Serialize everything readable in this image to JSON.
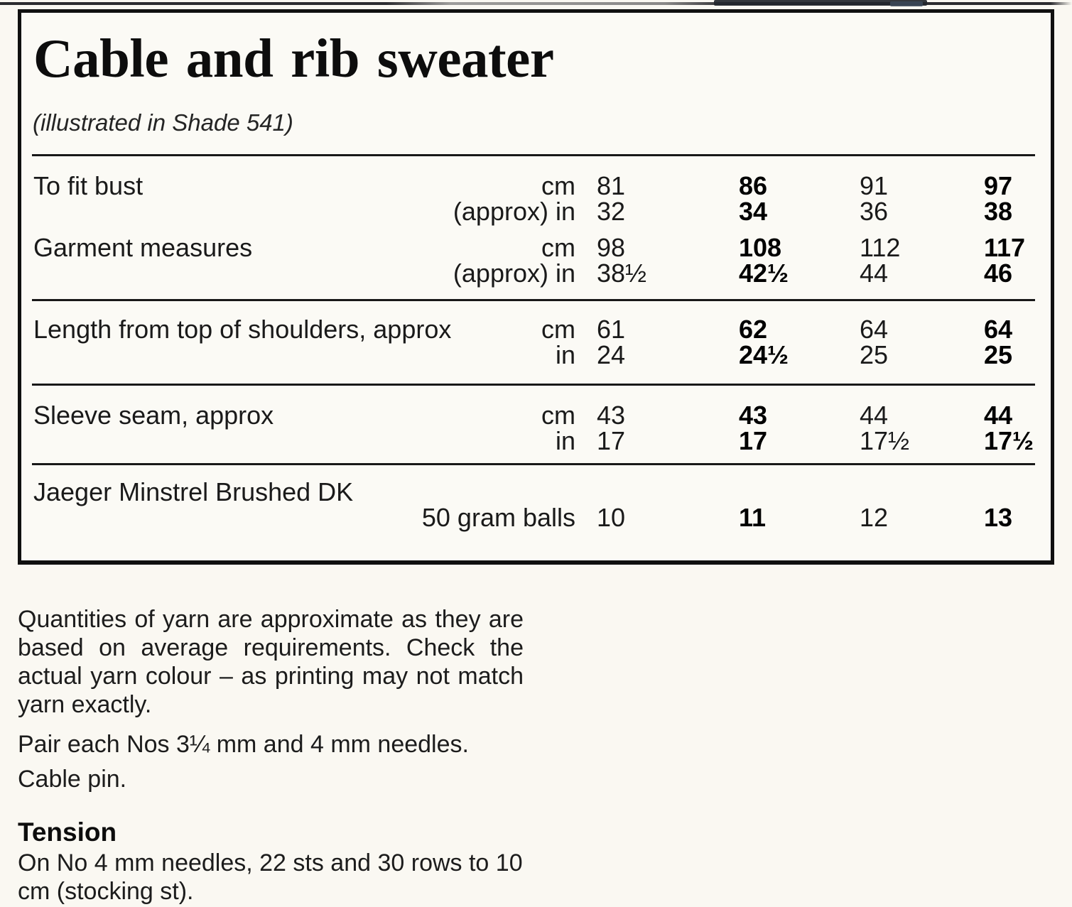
{
  "header": {
    "title": "Cable and rib sweater",
    "subtitle": "(illustrated in Shade 541)"
  },
  "size_table": {
    "sections": [
      {
        "rows": [
          {
            "label": "To fit bust",
            "unit": "cm",
            "values": [
              "81",
              "86",
              "91",
              "97"
            ]
          },
          {
            "label": "",
            "unit": "(approx) in",
            "values": [
              "32",
              "34",
              "36",
              "38"
            ]
          },
          {
            "label": "Garment measures",
            "unit": "cm",
            "values": [
              "98",
              "108",
              "112",
              "117"
            ]
          },
          {
            "label": "",
            "unit": "(approx) in",
            "values": [
              "38½",
              "42½",
              "44",
              "46"
            ]
          }
        ]
      },
      {
        "rows": [
          {
            "label": "Length from top of shoulders, approx",
            "unit": "cm",
            "values": [
              "61",
              "62",
              "64",
              "64"
            ]
          },
          {
            "label": "",
            "unit": "in",
            "values": [
              "24",
              "24½",
              "25",
              "25"
            ]
          }
        ]
      },
      {
        "rows": [
          {
            "label": "Sleeve seam, approx",
            "unit": "cm",
            "values": [
              "43",
              "43",
              "44",
              "44"
            ]
          },
          {
            "label": "",
            "unit": "in",
            "values": [
              "17",
              "17",
              "17½",
              "17½"
            ]
          }
        ]
      }
    ],
    "yarn": {
      "label": "Jaeger Minstrel Brushed DK",
      "unit": "50 gram balls",
      "values": [
        "10",
        "11",
        "12",
        "13"
      ]
    }
  },
  "notes": {
    "quantities": "Quantities of yarn are approximate as they are based on average requirements. Check the actual yarn colour – as printing may not match yarn exactly.",
    "needles": "Pair each Nos 3¼ mm and 4 mm needles.",
    "cable_pin": "Cable pin.",
    "tension_heading": "Tension",
    "tension_body": "On No 4 mm needles, 22 sts and 30 rows to 10 cm (stocking st)."
  },
  "colors": {
    "paper": "#faf8f2",
    "ink": "#1a1a1a",
    "border": "#101010"
  }
}
